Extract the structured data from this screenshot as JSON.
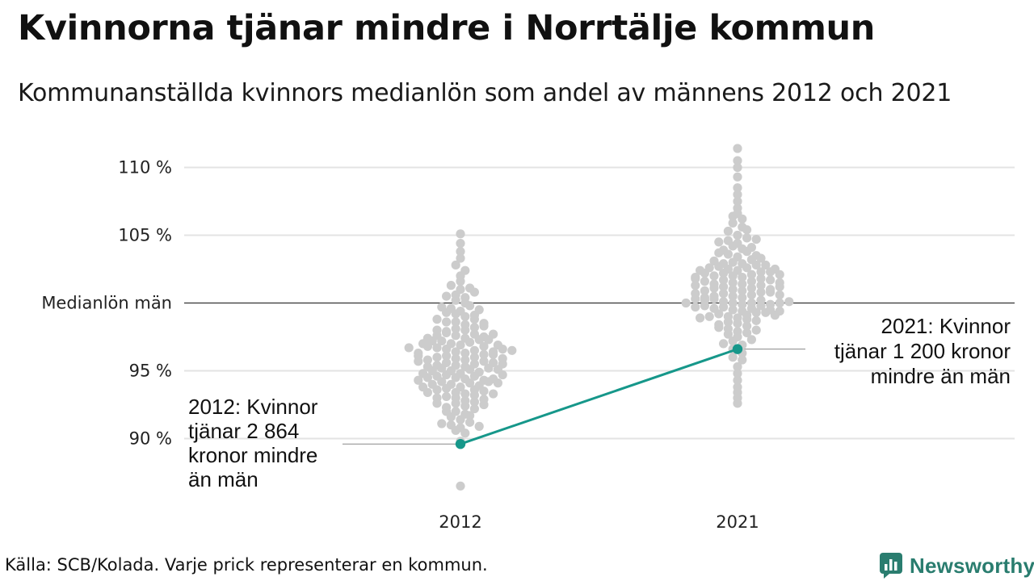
{
  "title": "Kvinnorna tjänar mindre i Norrtälje kommun",
  "subtitle": "Kommunanställda kvinnors medianlön som andel av männens 2012 och 2021",
  "source": "Källa: SCB/Kolada. Varje prick representerar en kommun.",
  "brand": {
    "name": "Newsworthy",
    "icon": "newsworthy-logo-icon",
    "color": "#2a7d6f"
  },
  "colors": {
    "dots": "#cccccc",
    "highlight": "#16978a",
    "gridline": "#e3e3e3",
    "reference_line": "#333333"
  },
  "chart_data": {
    "type": "scatter",
    "subtype": "beeswarm",
    "unit": "%",
    "ylim": [
      86,
      111.5
    ],
    "yticks": [
      {
        "value": 90,
        "label": "90 %"
      },
      {
        "value": 95,
        "label": "95 %"
      },
      {
        "value": 100,
        "label": "Medianlön män"
      },
      {
        "value": 105,
        "label": "105 %"
      },
      {
        "value": 110,
        "label": "110 %"
      }
    ],
    "categories": [
      "2012",
      "2021"
    ],
    "grid": true,
    "reference_line": {
      "value": 100,
      "label": "Medianlön män"
    },
    "swarms": [
      {
        "category": "2012",
        "description": "one dot per municipality",
        "values": [
          86.5,
          89.6,
          89.8,
          90.4,
          90.6,
          90.8,
          91.0,
          91.2,
          91.4,
          91.6,
          91.8,
          92.0,
          92.2,
          92.4,
          92.6,
          92.7,
          92.8,
          93.0,
          93.2,
          93.3,
          93.4,
          93.6,
          93.7,
          93.8,
          94.0,
          94.1,
          94.2,
          94.4,
          94.5,
          94.6,
          94.7,
          94.8,
          95.0,
          95.1,
          95.2,
          95.3,
          95.4,
          95.5,
          95.6,
          95.8,
          95.9,
          96.0,
          96.1,
          96.2,
          96.3,
          96.4,
          96.5,
          96.6,
          96.8,
          96.9,
          97.0,
          97.1,
          97.2,
          97.3,
          97.4,
          97.6,
          97.7,
          97.8,
          98.0,
          98.1,
          98.2,
          98.4,
          98.6,
          98.8,
          99.0,
          99.2,
          99.4,
          99.6,
          99.8,
          100.0,
          100.2,
          100.4,
          100.6,
          100.8,
          101.0,
          101.3,
          101.6,
          102.0,
          102.4,
          102.8,
          103.3,
          103.8,
          104.4,
          105.1,
          93.1,
          93.9,
          94.3,
          94.9,
          95.7,
          96.7,
          97.5,
          95.0,
          94.6,
          96.0,
          95.4,
          94.0,
          96.4,
          97.9,
          92.9,
          93.5,
          98.3,
          99.1,
          91.1,
          95.2,
          96.2,
          94.4,
          95.8,
          97.2,
          93.6,
          98.6,
          96.8,
          92.3,
          99.7,
          100.5,
          94.8,
          95.6,
          96.6,
          97.6,
          93.3,
          94.2,
          95.3,
          96.3,
          97.3,
          98.0,
          90.9,
          91.7,
          92.5,
          99.3,
          101.1,
          94.5,
          95.5,
          96.5,
          97.0,
          93.8,
          98.5,
          92.0,
          94.1,
          95.9,
          97.7,
          96.9,
          93.0,
          95.1,
          94.7,
          97.4,
          98.8,
          96.1,
          99.5,
          92.6,
          93.4,
          95.7,
          94.3,
          96.7
        ],
        "highlight": {
          "name": "Norrtälje",
          "value": 89.6,
          "annotation": [
            "2012: Kvinnor",
            "tjänar 2 864",
            "kronor mindre",
            "än män"
          ]
        }
      },
      {
        "category": "2021",
        "description": "one dot per municipality",
        "values": [
          92.6,
          93.0,
          93.4,
          93.8,
          94.3,
          94.8,
          95.3,
          95.8,
          96.3,
          96.6,
          96.9,
          97.2,
          97.5,
          97.7,
          97.9,
          98.1,
          98.3,
          98.5,
          98.6,
          98.8,
          98.9,
          99.0,
          99.1,
          99.2,
          99.3,
          99.4,
          99.5,
          99.6,
          99.7,
          99.8,
          99.9,
          100.0,
          100.0,
          100.1,
          100.2,
          100.3,
          100.4,
          100.5,
          100.6,
          100.7,
          100.8,
          100.9,
          101.0,
          101.1,
          101.2,
          101.3,
          101.4,
          101.5,
          101.6,
          101.7,
          101.8,
          101.9,
          102.0,
          102.1,
          102.2,
          102.3,
          102.4,
          102.5,
          102.6,
          102.7,
          102.8,
          102.9,
          103.0,
          103.2,
          103.4,
          103.6,
          103.8,
          104.0,
          104.2,
          104.4,
          104.6,
          104.8,
          105.0,
          105.3,
          105.6,
          105.9,
          106.2,
          106.6,
          107.0,
          107.5,
          108.0,
          108.5,
          109.3,
          110.0,
          110.5,
          111.4,
          98.4,
          98.7,
          99.0,
          99.3,
          99.6,
          99.9,
          100.2,
          100.5,
          100.8,
          101.1,
          101.4,
          101.7,
          102.0,
          102.3,
          102.6,
          102.9,
          103.3,
          103.7,
          104.1,
          104.5,
          100.0,
          100.4,
          101.0,
          101.6,
          102.2,
          102.8,
          99.5,
          98.9,
          97.8,
          97.3,
          100.3,
          100.9,
          101.5,
          102.1,
          103.1,
          103.5,
          105.4,
          106.4,
          104.7,
          99.8,
          100.6,
          101.2,
          101.8,
          102.4,
          98.2,
          99.1,
          100.1,
          100.7,
          101.3,
          99.4,
          100.0,
          102.5,
          103.9,
          96.0,
          97.0,
          98.0,
          99.7,
          101.9
        ],
        "highlight": {
          "name": "Norrtälje",
          "value": 96.6,
          "annotation": [
            "2021: Kvinnor",
            "tjänar 1 200 kronor",
            "mindre än män"
          ]
        }
      }
    ]
  }
}
